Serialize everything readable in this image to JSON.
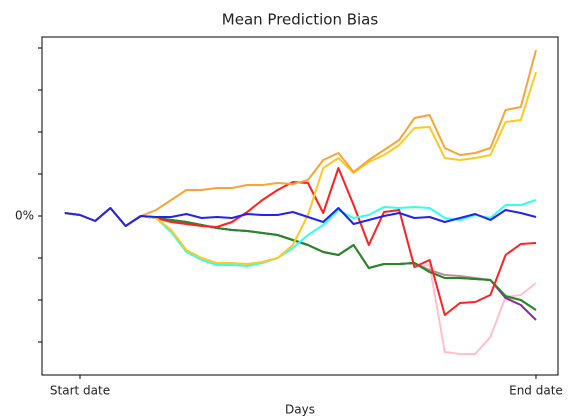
{
  "chart_data": {
    "type": "line",
    "title": "Mean Prediction Bias",
    "xlabel": "Days",
    "x": [
      0,
      1,
      2,
      3,
      4,
      5,
      6,
      7,
      8,
      9,
      10,
      11,
      12,
      13,
      14,
      15,
      16,
      17,
      18,
      19,
      20,
      21,
      22,
      23,
      24,
      25,
      26,
      27,
      28,
      29,
      30,
      31
    ],
    "xlim": [
      -1.5,
      32.45
    ],
    "xticks": [
      {
        "value": 1,
        "label": "Start date"
      },
      {
        "value": 31,
        "label": "End date"
      }
    ],
    "ylim": [
      -159,
      179
    ],
    "yticks": [
      -126,
      -84,
      -42,
      0,
      42,
      84,
      126,
      168
    ],
    "ytick_labels": [
      {
        "value": 0,
        "label": "0%"
      }
    ],
    "series": [
      {
        "color": "#ffc0cb",
        "values": [
          3,
          1,
          -5,
          8,
          -10,
          0,
          -2,
          -6,
          -8,
          -10,
          -11,
          -6,
          4,
          16,
          26,
          34,
          33,
          3,
          48,
          11,
          -29,
          4,
          6,
          -51,
          -49,
          -136,
          -138,
          -138,
          -121,
          -81,
          -79,
          -67
        ]
      },
      {
        "color": "#bc8f8f",
        "values": [
          3,
          1,
          -5,
          8,
          -10,
          0,
          -2,
          -4,
          -6,
          -9,
          -12,
          -14,
          -15,
          -17,
          -19,
          -24,
          -29,
          -36,
          -39,
          -29,
          -52,
          -48,
          -48,
          -47,
          -54,
          -59,
          -60,
          -62,
          -64,
          -81,
          -84,
          -94
        ]
      },
      {
        "color": "#8b2a9a",
        "values": [
          3,
          1,
          -5,
          8,
          -10,
          0,
          -2,
          -4,
          -6,
          -9,
          -12,
          -14,
          -15,
          -17,
          -19,
          -24,
          -29,
          -36,
          -39,
          -29,
          -52,
          -48,
          -48,
          -47,
          -56,
          -62,
          -62,
          -63,
          -64,
          -82,
          -89,
          -104
        ]
      },
      {
        "color": "#228b22",
        "values": [
          3,
          1,
          -5,
          8,
          -10,
          0,
          -2,
          -4,
          -6,
          -9,
          -12,
          -14,
          -15,
          -17,
          -19,
          -24,
          -29,
          -36,
          -39,
          -29,
          -52,
          -48,
          -48,
          -47,
          -56,
          -62,
          -62,
          -63,
          -64,
          -80,
          -84,
          -94
        ]
      },
      {
        "color": "#ff2222",
        "values": [
          3,
          1,
          -5,
          8,
          -10,
          0,
          -2,
          -6,
          -8,
          -10,
          -11,
          -6,
          4,
          16,
          26,
          34,
          33,
          3,
          48,
          11,
          -29,
          4,
          6,
          -51,
          -44,
          -99,
          -87,
          -86,
          -79,
          -39,
          -28,
          -27
        ]
      },
      {
        "color": "#33ffee",
        "values": [
          3,
          1,
          -5,
          8,
          -10,
          0,
          -2,
          -16,
          -36,
          -44,
          -49,
          -49,
          -50,
          -47,
          -42,
          -32,
          -19,
          -9,
          6,
          -2,
          1,
          9,
          8,
          9,
          8,
          -2,
          -4,
          1,
          -2,
          11,
          11,
          16
        ]
      },
      {
        "color": "#ffc822",
        "values": [
          3,
          1,
          -5,
          8,
          -10,
          0,
          -2,
          -14,
          -34,
          -42,
          -47,
          -47,
          -48,
          -46,
          -42,
          -29,
          1,
          48,
          58,
          43,
          54,
          61,
          71,
          88,
          89,
          58,
          56,
          58,
          61,
          94,
          96,
          144
        ]
      },
      {
        "color": "#f8a436",
        "values": [
          3,
          1,
          -5,
          8,
          -10,
          0,
          6,
          16,
          26,
          26,
          28,
          28,
          31,
          31,
          33,
          32,
          36,
          56,
          63,
          44,
          56,
          66,
          76,
          98,
          101,
          68,
          61,
          63,
          68,
          106,
          109,
          166
        ]
      },
      {
        "color": "#2222ee",
        "values": [
          3,
          1,
          -5,
          8,
          -10,
          0,
          -1,
          -1,
          2,
          -2,
          -1,
          -2,
          2,
          1,
          1,
          4,
          -1,
          -6,
          8,
          -8,
          -4,
          0,
          3,
          -2,
          -1,
          -6,
          -2,
          2,
          -4,
          6,
          3,
          -1
        ]
      }
    ]
  }
}
